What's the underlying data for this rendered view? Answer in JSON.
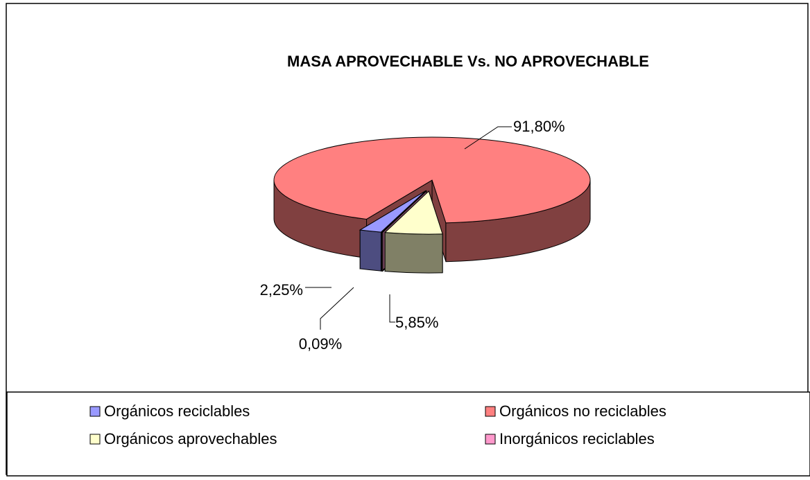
{
  "chart_data": {
    "type": "pie3d",
    "title": "MASA APROVECHABLE Vs. NO APROVECHABLE",
    "categories": [
      "Orgánicos reciclables",
      "Orgánicos no reciclables",
      "Orgánicos aprovechables",
      "Inorgánicos reciclables"
    ],
    "values": [
      2.25,
      91.8,
      5.85,
      0.09
    ],
    "value_labels": [
      "2,25%",
      "91,80%",
      "5,85%",
      "0,09%"
    ],
    "colors": [
      "#9999ff",
      "#ff8080",
      "#ffffcc",
      "#ff99cc"
    ],
    "legend": "bottom"
  }
}
